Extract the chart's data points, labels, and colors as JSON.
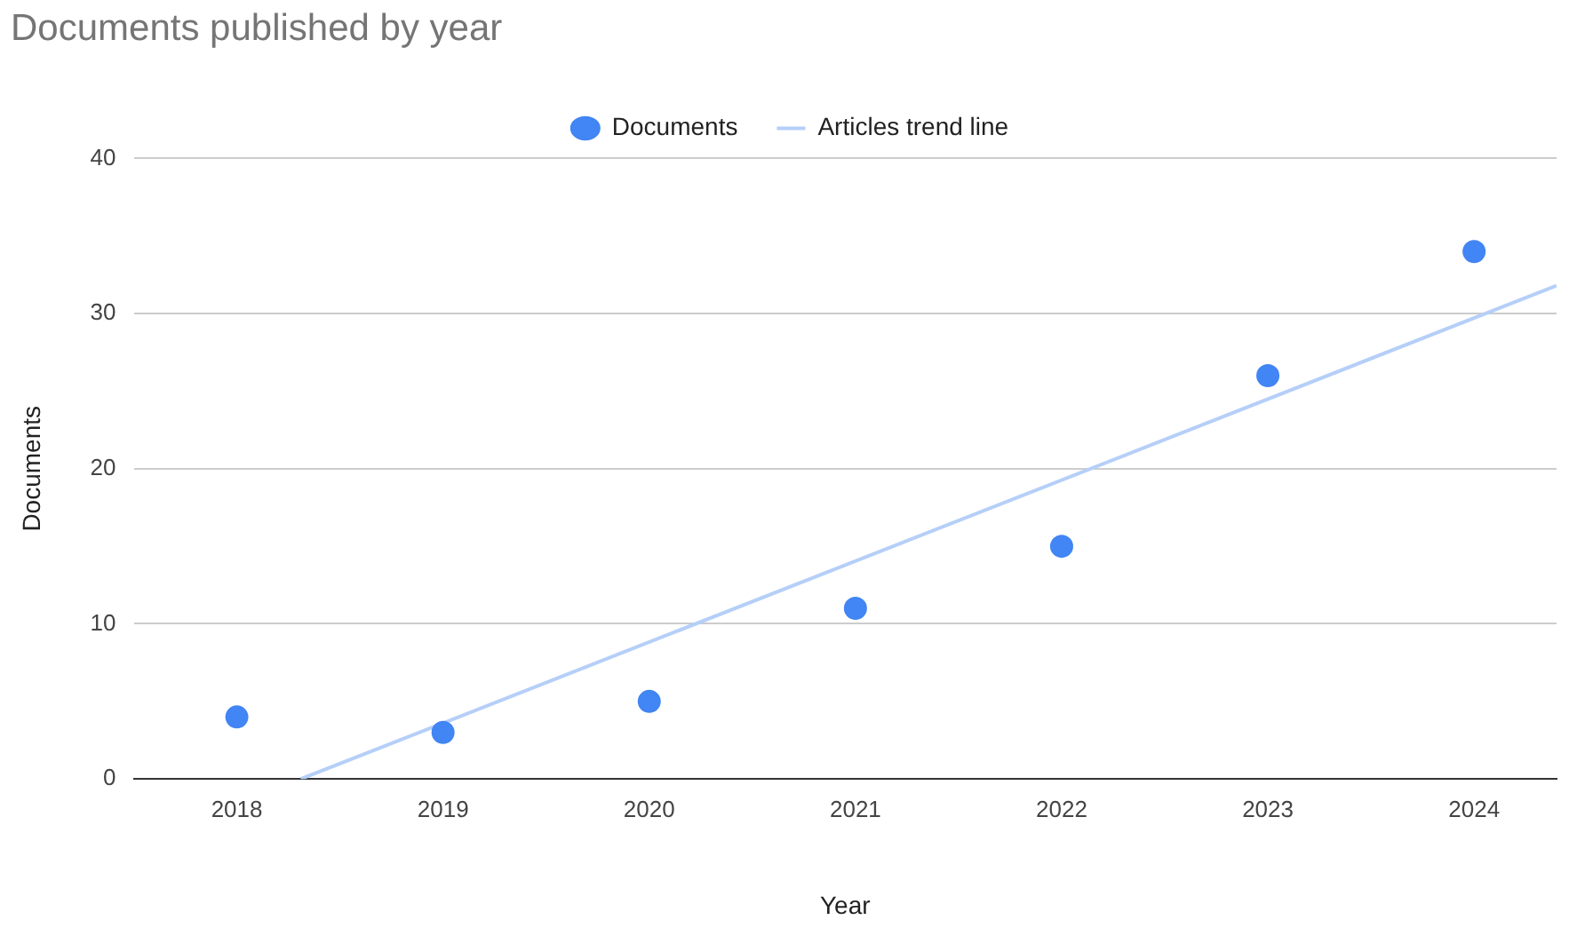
{
  "chart_data": {
    "type": "scatter",
    "title": "Documents published by year",
    "xlabel": "Year",
    "ylabel": "Documents",
    "x": [
      2018,
      2019,
      2020,
      2021,
      2022,
      2023,
      2024
    ],
    "xlim": [
      2017.5,
      2024.4
    ],
    "xticks": [
      2018,
      2019,
      2020,
      2021,
      2022,
      2023,
      2024
    ],
    "ylim": [
      0,
      40
    ],
    "yticks": [
      0,
      10,
      20,
      30,
      40
    ],
    "grid": "y",
    "legend": "top",
    "series": [
      {
        "name": "Documents",
        "marker": "circle",
        "color": "#4285f4",
        "values": [
          4,
          3,
          5,
          11,
          15,
          26,
          34
        ]
      },
      {
        "name": "Articles trend line",
        "type": "line",
        "color": "#b5cff8",
        "line_style": "solid",
        "marker": "none",
        "x": [
          2018.31,
          2024.4
        ],
        "values": [
          0,
          31.8
        ]
      }
    ]
  }
}
